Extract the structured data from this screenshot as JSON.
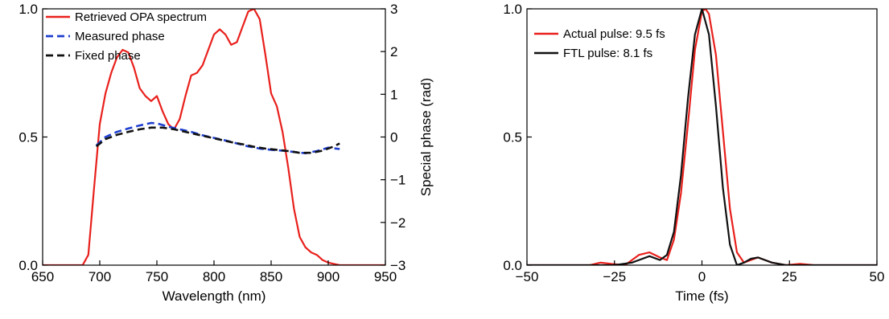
{
  "chart_data": [
    {
      "type": "line",
      "xlabel": "Wavelength (nm)",
      "ylabel": "",
      "y2label": "Special phase (rad)",
      "xlim": [
        650,
        950
      ],
      "ylim": [
        0,
        1.0
      ],
      "y2lim": [
        -3,
        3
      ],
      "xticks": [
        "650",
        "700",
        "750",
        "800",
        "850",
        "900",
        "950"
      ],
      "yticks": [
        "0.0",
        "0.5",
        "1.0"
      ],
      "y2ticks": [
        "3",
        "2",
        "1",
        "0",
        "−1",
        "−2",
        "−3"
      ],
      "grid": false,
      "legend_position": "top-left",
      "series": [
        {
          "name": "Retrieved OPA spectrum",
          "color": "#e8201c",
          "style": "solid",
          "axis": "left",
          "x": [
            650,
            685,
            690,
            695,
            700,
            705,
            710,
            715,
            720,
            725,
            730,
            735,
            740,
            745,
            750,
            755,
            760,
            765,
            770,
            775,
            780,
            785,
            790,
            795,
            800,
            805,
            810,
            815,
            820,
            825,
            830,
            835,
            840,
            845,
            850,
            855,
            860,
            865,
            870,
            875,
            880,
            885,
            890,
            895,
            900,
            905,
            910,
            920,
            930,
            940,
            950
          ],
          "y": [
            0.0,
            0.0,
            0.04,
            0.3,
            0.55,
            0.67,
            0.75,
            0.81,
            0.84,
            0.83,
            0.77,
            0.69,
            0.66,
            0.64,
            0.66,
            0.6,
            0.55,
            0.53,
            0.57,
            0.66,
            0.74,
            0.75,
            0.78,
            0.84,
            0.9,
            0.92,
            0.9,
            0.86,
            0.87,
            0.93,
            0.99,
            1.0,
            0.96,
            0.82,
            0.67,
            0.62,
            0.52,
            0.38,
            0.22,
            0.11,
            0.07,
            0.05,
            0.04,
            0.02,
            0.01,
            0.005,
            0.0,
            0.0,
            0.0,
            0.0,
            0.0
          ]
        },
        {
          "name": "Measured phase",
          "color": "#1e3fcf",
          "style": "dashed",
          "axis": "right",
          "x": [
            697,
            705,
            715,
            725,
            735,
            745,
            750,
            760,
            770,
            780,
            790,
            800,
            810,
            820,
            830,
            840,
            850,
            860,
            870,
            880,
            890,
            900,
            910
          ],
          "y": [
            -0.2,
            0.0,
            0.12,
            0.2,
            0.27,
            0.33,
            0.32,
            0.24,
            0.18,
            0.12,
            0.04,
            -0.02,
            -0.08,
            -0.15,
            -0.22,
            -0.27,
            -0.3,
            -0.32,
            -0.35,
            -0.38,
            -0.33,
            -0.25,
            -0.28
          ]
        },
        {
          "name": "Fixed phase",
          "color": "#111111",
          "style": "dashed",
          "axis": "right",
          "x": [
            697,
            705,
            715,
            725,
            735,
            745,
            755,
            765,
            775,
            785,
            795,
            805,
            815,
            825,
            835,
            845,
            855,
            865,
            875,
            885,
            895,
            905,
            910
          ],
          "y": [
            -0.22,
            -0.05,
            0.05,
            0.12,
            0.18,
            0.22,
            0.22,
            0.18,
            0.12,
            0.06,
            0.0,
            -0.06,
            -0.12,
            -0.17,
            -0.23,
            -0.27,
            -0.3,
            -0.33,
            -0.37,
            -0.37,
            -0.32,
            -0.22,
            -0.15
          ]
        }
      ]
    },
    {
      "type": "line",
      "xlabel": "Time (fs)",
      "ylabel": "",
      "xlim": [
        -50,
        50
      ],
      "ylim": [
        0,
        1.0
      ],
      "xticks": [
        "−50",
        "−25",
        "0",
        "25",
        "50"
      ],
      "yticks": [
        "0.0",
        "0.5",
        "1.0"
      ],
      "grid": false,
      "legend_position": "top-left",
      "series": [
        {
          "name": "Actual pulse: 9.5 fs",
          "color": "#e8201c",
          "style": "solid",
          "x": [
            -50,
            -32,
            -29,
            -26,
            -22,
            -18,
            -15,
            -12,
            -10,
            -8,
            -6,
            -4,
            -2,
            0,
            1,
            2,
            4,
            6,
            8,
            10,
            12,
            14,
            16,
            18,
            20,
            24,
            28,
            32,
            50
          ],
          "y": [
            0.0,
            0.0,
            0.01,
            0.005,
            0.0,
            0.04,
            0.05,
            0.03,
            0.02,
            0.1,
            0.28,
            0.55,
            0.84,
            0.99,
            1.0,
            0.98,
            0.82,
            0.52,
            0.22,
            0.05,
            0.01,
            0.02,
            0.03,
            0.02,
            0.01,
            0.0,
            0.005,
            0.0,
            0.0
          ]
        },
        {
          "name": "FTL pulse: 8.1 fs",
          "color": "#111111",
          "style": "solid",
          "x": [
            -50,
            -25,
            -20,
            -18,
            -15,
            -12,
            -10,
            -8,
            -6,
            -4,
            -2,
            0,
            2,
            4,
            6,
            8,
            10,
            12,
            14,
            16,
            18,
            20,
            24,
            50
          ],
          "y": [
            0.0,
            0.0,
            0.01,
            0.02,
            0.035,
            0.02,
            0.04,
            0.13,
            0.35,
            0.65,
            0.9,
            1.0,
            0.9,
            0.62,
            0.3,
            0.08,
            0.0,
            0.01,
            0.025,
            0.03,
            0.02,
            0.01,
            0.0,
            0.0
          ]
        }
      ]
    }
  ]
}
